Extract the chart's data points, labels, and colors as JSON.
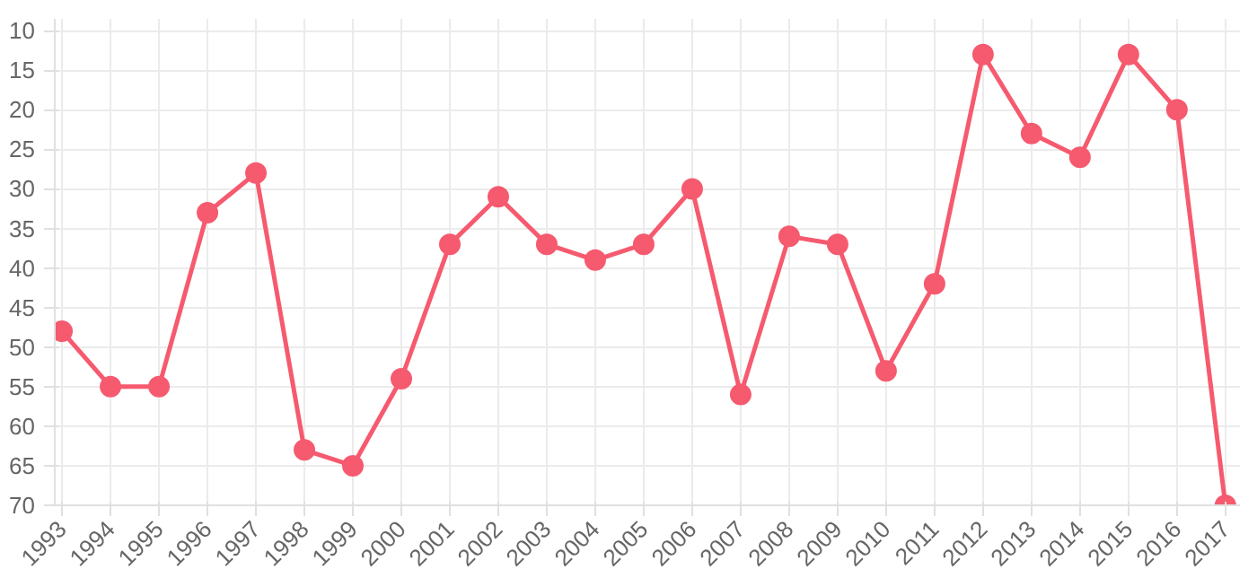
{
  "chart_data": {
    "type": "line",
    "categories": [
      "1993",
      "1994",
      "1995",
      "1996",
      "1997",
      "1998",
      "1999",
      "2000",
      "2001",
      "2002",
      "2003",
      "2004",
      "2005",
      "2006",
      "2007",
      "2008",
      "2009",
      "2010",
      "2011",
      "2012",
      "2013",
      "2014",
      "2015",
      "2016",
      "2017"
    ],
    "series": [
      {
        "color": "#f65a6f",
        "values": [
          48,
          55,
          55,
          33,
          28,
          63,
          65,
          54,
          37,
          31,
          37,
          39,
          37,
          30,
          56,
          36,
          37,
          53,
          42,
          13,
          23,
          26,
          13,
          20,
          70
        ]
      }
    ],
    "ylim": [
      70,
      8.5
    ],
    "yticks": [
      10,
      15,
      20,
      25,
      30,
      35,
      40,
      45,
      50,
      55,
      60,
      65,
      70
    ],
    "grid": true,
    "marker": "circle",
    "line_style": "solid"
  }
}
